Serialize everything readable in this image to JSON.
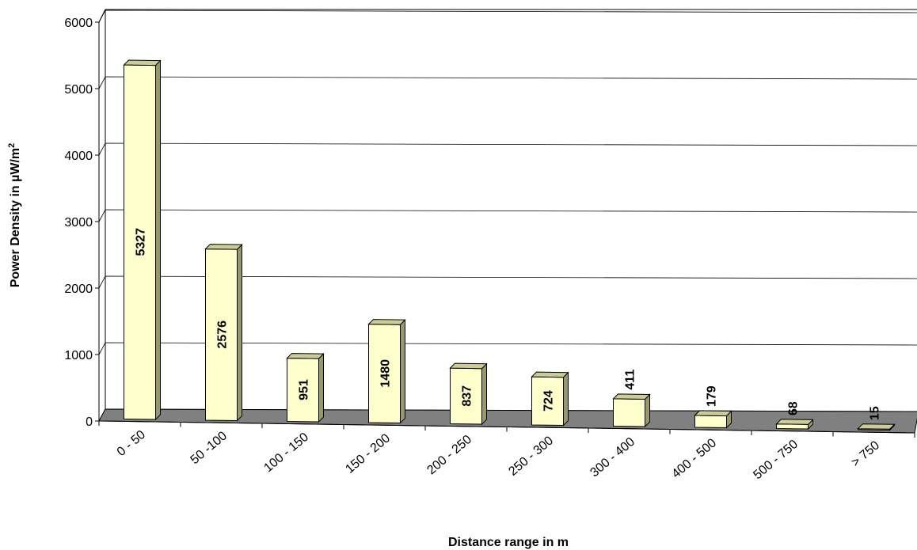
{
  "chart_data": {
    "type": "bar",
    "style": "3d-column",
    "title": "",
    "xlabel": "Distance range in m",
    "ylabel": "Power Density in µW/m",
    "ylabel_superscript": "2",
    "ylim": [
      0,
      6000
    ],
    "yticks": [
      "0",
      "1000",
      "2000",
      "3000",
      "4000",
      "5000",
      "6000"
    ],
    "grid": true,
    "legend": "none",
    "categories": [
      "0 - 50",
      "50 -100",
      "100 - 150",
      "150 - 200",
      "200 - 250",
      "250 - 300",
      "300 - 400",
      "400 - 500",
      "500 - 750",
      "> 750"
    ],
    "values": [
      5327,
      2576,
      951,
      1480,
      837,
      724,
      411,
      179,
      68,
      15
    ],
    "value_labels": [
      "5327",
      "2576",
      "951",
      "1480",
      "837",
      "724",
      "411",
      "179",
      "68",
      "15"
    ],
    "colors": {
      "bar_front": "#ffffcc",
      "bar_top": "#cccc99",
      "bar_side": "#999966",
      "floor": "#808080",
      "gridline": "#000000"
    }
  }
}
